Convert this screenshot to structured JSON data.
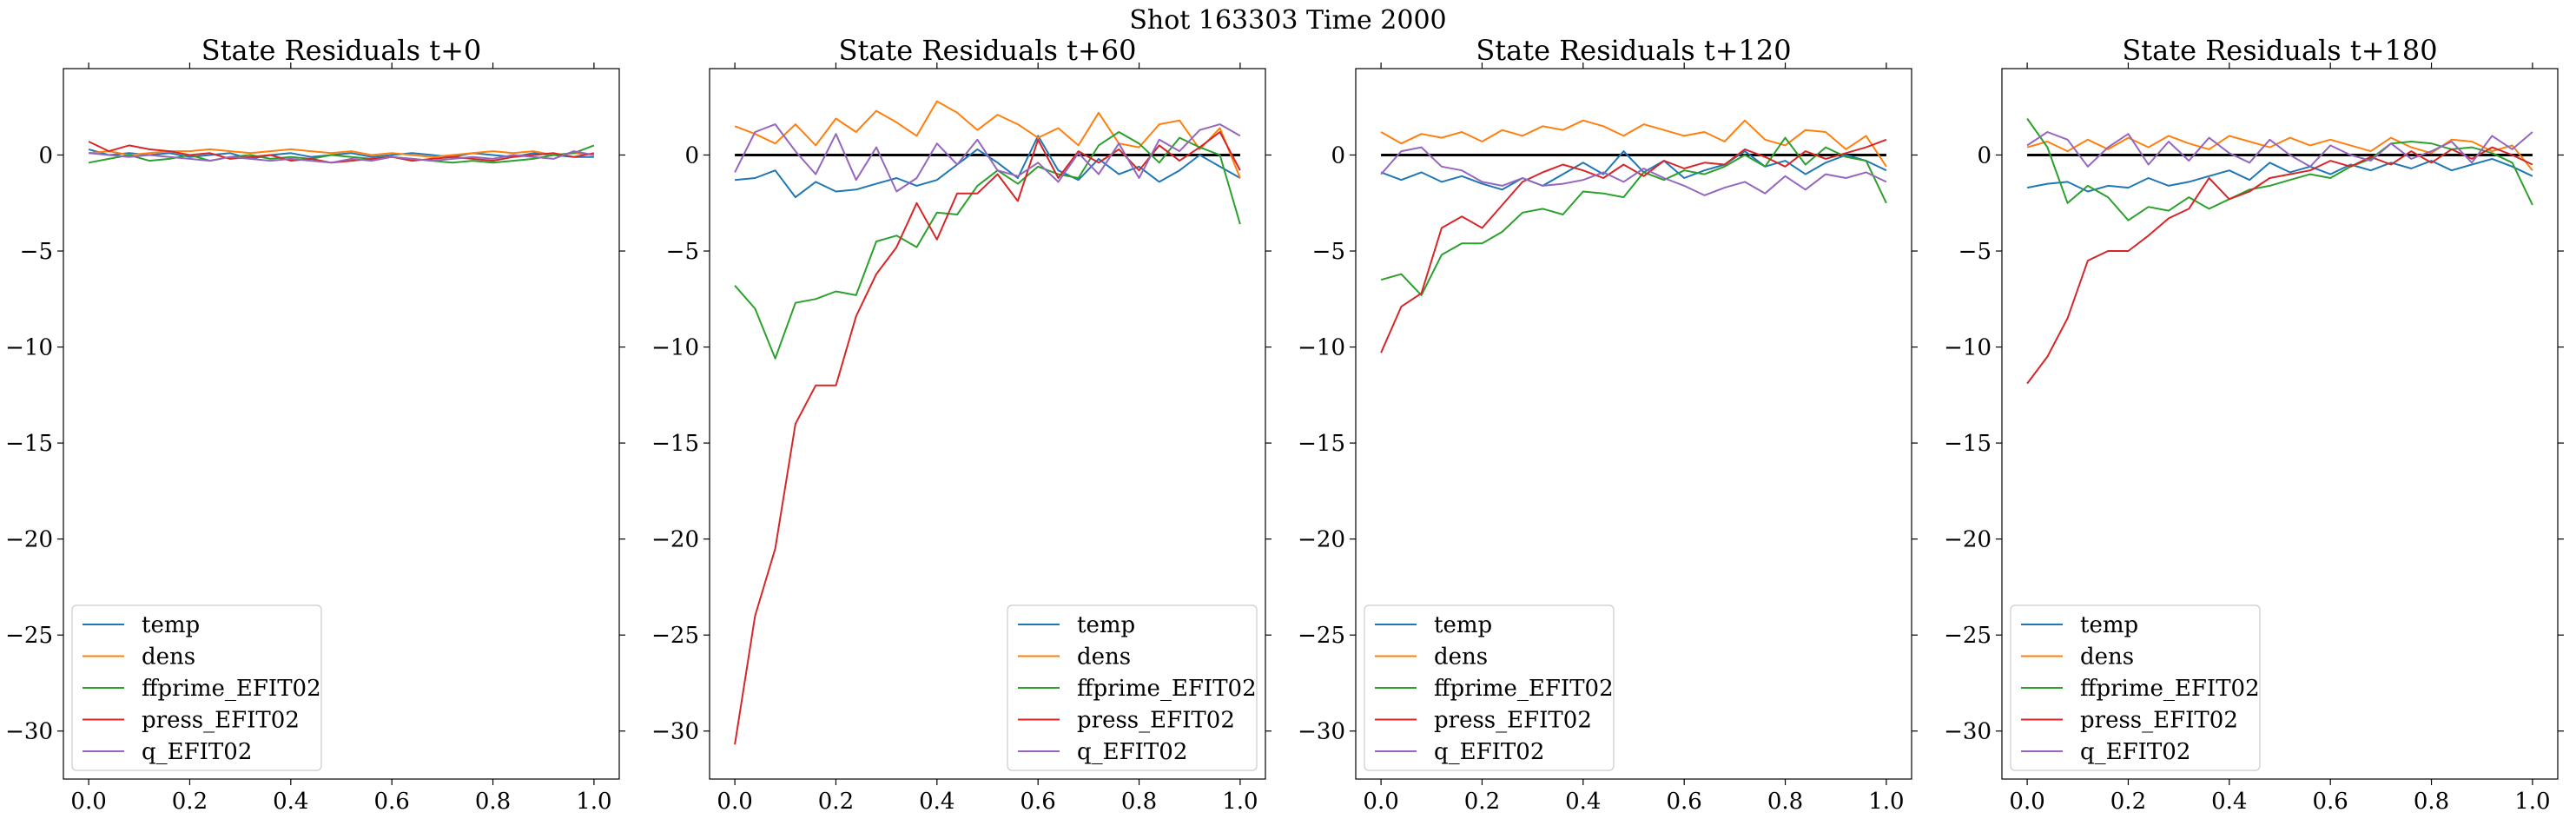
{
  "suptitle": "Shot 163303   Time 2000",
  "colors": {
    "temp": "#1f77b4",
    "dens": "#ff7f0e",
    "ffprime_EFIT02": "#2ca02c",
    "press_EFIT02": "#d62728",
    "q_EFIT02": "#9467bd",
    "zero_line": "#000000"
  },
  "chart_data": [
    {
      "type": "line",
      "title": "State Residuals t+0",
      "xlim": [
        -0.05,
        1.05
      ],
      "ylim": [
        -32.5,
        4.5
      ],
      "xticks": [
        "0.0",
        "0.2",
        "0.4",
        "0.6",
        "0.8",
        "1.0"
      ],
      "yticks": [
        "0",
        "−5",
        "−10",
        "−15",
        "−20",
        "−25",
        "−30"
      ],
      "zero_line": false,
      "legend": "lower-left",
      "x": [
        0.0,
        0.04,
        0.08,
        0.12,
        0.16,
        0.2,
        0.24,
        0.28,
        0.32,
        0.36,
        0.4,
        0.44,
        0.48,
        0.52,
        0.56,
        0.6,
        0.64,
        0.68,
        0.72,
        0.76,
        0.8,
        0.84,
        0.88,
        0.92,
        0.96,
        1.0
      ],
      "series": [
        {
          "name": "temp",
          "values": [
            0.3,
            0.0,
            0.1,
            0.0,
            0.1,
            -0.1,
            0.0,
            0.1,
            -0.2,
            0.0,
            0.1,
            -0.1,
            0.0,
            0.1,
            -0.1,
            0.0,
            0.1,
            0.0,
            -0.1,
            0.1,
            0.0,
            -0.1,
            0.1,
            0.0,
            -0.1,
            -0.1
          ]
        },
        {
          "name": "dens",
          "values": [
            0.1,
            0.2,
            0.0,
            0.1,
            0.2,
            0.2,
            0.3,
            0.2,
            0.1,
            0.2,
            0.3,
            0.2,
            0.1,
            0.2,
            0.0,
            0.1,
            0.0,
            -0.1,
            0.0,
            0.1,
            0.2,
            0.1,
            0.2,
            0.0,
            0.1,
            0.0
          ]
        },
        {
          "name": "ffprime_EFIT02",
          "values": [
            -0.4,
            -0.2,
            0.0,
            -0.3,
            -0.2,
            0.0,
            -0.3,
            -0.1,
            0.0,
            -0.2,
            -0.1,
            -0.2,
            0.0,
            -0.1,
            -0.2,
            -0.1,
            -0.2,
            -0.3,
            -0.4,
            -0.3,
            -0.4,
            -0.3,
            -0.2,
            0.0,
            0.1,
            0.5
          ]
        },
        {
          "name": "press_EFIT02",
          "values": [
            0.7,
            0.2,
            0.5,
            0.3,
            0.2,
            0.0,
            0.1,
            -0.2,
            -0.1,
            0.0,
            -0.3,
            -0.2,
            -0.4,
            -0.3,
            -0.2,
            -0.1,
            -0.3,
            -0.2,
            -0.1,
            -0.2,
            -0.3,
            -0.1,
            0.0,
            0.1,
            -0.1,
            0.1
          ]
        },
        {
          "name": "q_EFIT02",
          "values": [
            0.1,
            0.0,
            -0.1,
            0.0,
            -0.1,
            -0.2,
            -0.3,
            -0.1,
            -0.2,
            -0.3,
            -0.2,
            -0.3,
            -0.4,
            -0.2,
            -0.3,
            -0.1,
            -0.2,
            -0.3,
            -0.2,
            -0.1,
            -0.2,
            0.0,
            -0.1,
            -0.2,
            0.2,
            0.0
          ]
        }
      ]
    },
    {
      "type": "line",
      "title": "State Residuals t+60",
      "xlim": [
        -0.05,
        1.05
      ],
      "ylim": [
        -32.5,
        4.5
      ],
      "xticks": [
        "0.0",
        "0.2",
        "0.4",
        "0.6",
        "0.8",
        "1.0"
      ],
      "yticks": [
        "0",
        "−5",
        "−10",
        "−15",
        "−20",
        "−25",
        "−30"
      ],
      "zero_line": true,
      "legend": "lower-right",
      "x": [
        0.0,
        0.04,
        0.08,
        0.12,
        0.16,
        0.2,
        0.24,
        0.28,
        0.32,
        0.36,
        0.4,
        0.44,
        0.48,
        0.52,
        0.56,
        0.6,
        0.64,
        0.68,
        0.72,
        0.76,
        0.8,
        0.84,
        0.88,
        0.92,
        0.96,
        1.0
      ],
      "series": [
        {
          "name": "temp",
          "values": [
            -1.3,
            -1.2,
            -0.8,
            -2.2,
            -1.4,
            -1.9,
            -1.8,
            -1.5,
            -1.2,
            -1.6,
            -1.3,
            -0.5,
            0.3,
            -0.4,
            -1.2,
            1.0,
            -0.8,
            -1.3,
            -0.2,
            -1.0,
            -0.6,
            -1.4,
            -0.8,
            0.0,
            -0.6,
            -1.2
          ]
        },
        {
          "name": "dens",
          "values": [
            1.5,
            1.1,
            0.6,
            1.6,
            0.5,
            1.9,
            1.2,
            2.3,
            1.7,
            1.0,
            2.8,
            2.2,
            1.3,
            2.1,
            1.6,
            0.9,
            1.4,
            0.5,
            2.2,
            0.6,
            0.4,
            1.6,
            1.8,
            0.3,
            1.4,
            -1.2
          ]
        },
        {
          "name": "ffprime_EFIT02",
          "values": [
            -6.8,
            -8.0,
            -10.6,
            -7.7,
            -7.5,
            -7.1,
            -7.3,
            -4.5,
            -4.2,
            -4.8,
            -3.0,
            -3.1,
            -1.6,
            -0.8,
            -1.5,
            -0.6,
            -1.0,
            -1.2,
            0.5,
            1.2,
            0.6,
            -0.4,
            0.9,
            0.4,
            0.0,
            -3.6
          ]
        },
        {
          "name": "press_EFIT02",
          "values": [
            -30.7,
            -24.0,
            -20.5,
            -14.0,
            -12.0,
            -12.0,
            -8.4,
            -6.2,
            -4.8,
            -2.5,
            -4.4,
            -2.0,
            -2.0,
            -1.0,
            -2.4,
            0.8,
            -1.2,
            0.2,
            -0.4,
            0.3,
            -0.8,
            0.5,
            -0.3,
            0.4,
            1.2,
            -0.8
          ]
        },
        {
          "name": "q_EFIT02",
          "values": [
            -0.9,
            1.2,
            1.6,
            0.2,
            -1.0,
            1.1,
            -1.3,
            0.4,
            -1.9,
            -1.2,
            0.6,
            -0.5,
            0.8,
            -0.8,
            -1.1,
            -0.4,
            -1.4,
            0.1,
            -1.0,
            0.6,
            -1.2,
            0.8,
            0.2,
            1.3,
            1.6,
            1.0
          ]
        }
      ]
    },
    {
      "type": "line",
      "title": "State Residuals t+120",
      "xlim": [
        -0.05,
        1.05
      ],
      "ylim": [
        -32.5,
        4.5
      ],
      "xticks": [
        "0.0",
        "0.2",
        "0.4",
        "0.6",
        "0.8",
        "1.0"
      ],
      "yticks": [
        "0",
        "−5",
        "−10",
        "−15",
        "−20",
        "−25",
        "−30"
      ],
      "zero_line": true,
      "legend": "lower-left",
      "x": [
        0.0,
        0.04,
        0.08,
        0.12,
        0.16,
        0.2,
        0.24,
        0.28,
        0.32,
        0.36,
        0.4,
        0.44,
        0.48,
        0.52,
        0.56,
        0.6,
        0.64,
        0.68,
        0.72,
        0.76,
        0.8,
        0.84,
        0.88,
        0.92,
        0.96,
        1.0
      ],
      "series": [
        {
          "name": "temp",
          "values": [
            -0.9,
            -1.3,
            -0.9,
            -1.4,
            -1.1,
            -1.5,
            -1.8,
            -1.2,
            -1.6,
            -1.0,
            -0.4,
            -1.0,
            0.2,
            -0.9,
            -0.3,
            -1.2,
            -0.8,
            -0.5,
            0.2,
            -0.6,
            -0.3,
            -1.0,
            -0.4,
            0.0,
            -0.3,
            -0.8
          ]
        },
        {
          "name": "dens",
          "values": [
            1.2,
            0.6,
            1.1,
            0.9,
            1.2,
            0.7,
            1.3,
            1.0,
            1.5,
            1.3,
            1.8,
            1.5,
            1.0,
            1.6,
            1.3,
            1.0,
            1.2,
            0.7,
            1.8,
            0.8,
            0.5,
            1.3,
            1.2,
            0.3,
            1.0,
            -0.6
          ]
        },
        {
          "name": "ffprime_EFIT02",
          "values": [
            -6.5,
            -6.2,
            -7.3,
            -5.2,
            -4.6,
            -4.6,
            -4.0,
            -3.0,
            -2.8,
            -3.1,
            -1.9,
            -2.0,
            -2.2,
            -0.9,
            -1.3,
            -0.8,
            -1.0,
            -0.6,
            0.0,
            -0.6,
            0.9,
            -0.5,
            0.4,
            -0.1,
            -0.3,
            -2.5
          ]
        },
        {
          "name": "press_EFIT02",
          "values": [
            -10.3,
            -7.9,
            -7.2,
            -3.8,
            -3.2,
            -3.8,
            -2.6,
            -1.4,
            -0.9,
            -0.5,
            -0.8,
            -1.2,
            -0.5,
            -1.1,
            -0.3,
            -0.7,
            -0.4,
            -0.5,
            0.3,
            -0.1,
            -0.6,
            0.2,
            -0.2,
            0.1,
            0.4,
            0.8
          ]
        },
        {
          "name": "q_EFIT02",
          "values": [
            -1.0,
            0.2,
            0.4,
            -0.6,
            -0.8,
            -1.4,
            -1.6,
            -1.2,
            -1.6,
            -1.5,
            -1.3,
            -0.9,
            -1.4,
            -0.7,
            -1.2,
            -1.6,
            -2.1,
            -1.7,
            -1.4,
            -2.0,
            -1.1,
            -1.8,
            -1.0,
            -1.2,
            -0.9,
            -1.4
          ]
        }
      ]
    },
    {
      "type": "line",
      "title": "State Residuals t+180",
      "xlim": [
        -0.05,
        1.05
      ],
      "ylim": [
        -32.5,
        4.5
      ],
      "xticks": [
        "0.0",
        "0.2",
        "0.4",
        "0.6",
        "0.8",
        "1.0"
      ],
      "yticks": [
        "0",
        "−5",
        "−10",
        "−15",
        "−20",
        "−25",
        "−30"
      ],
      "zero_line": true,
      "legend": "lower-left",
      "x": [
        0.0,
        0.04,
        0.08,
        0.12,
        0.16,
        0.2,
        0.24,
        0.28,
        0.32,
        0.36,
        0.4,
        0.44,
        0.48,
        0.52,
        0.56,
        0.6,
        0.64,
        0.68,
        0.72,
        0.76,
        0.8,
        0.84,
        0.88,
        0.92,
        0.96,
        1.0
      ],
      "series": [
        {
          "name": "temp",
          "values": [
            -1.7,
            -1.5,
            -1.4,
            -1.9,
            -1.6,
            -1.7,
            -1.2,
            -1.6,
            -1.4,
            -1.1,
            -0.8,
            -1.3,
            -0.4,
            -0.9,
            -0.6,
            -1.0,
            -0.5,
            -0.8,
            -0.4,
            -0.7,
            -0.3,
            -0.8,
            -0.5,
            -0.2,
            -0.6,
            -1.1
          ]
        },
        {
          "name": "dens",
          "values": [
            0.4,
            0.7,
            0.2,
            0.8,
            0.3,
            0.9,
            0.4,
            1.0,
            0.6,
            0.3,
            1.0,
            0.7,
            0.4,
            0.9,
            0.5,
            0.8,
            0.5,
            0.2,
            0.9,
            0.4,
            0.1,
            0.8,
            0.7,
            0.2,
            0.5,
            -0.8
          ]
        },
        {
          "name": "ffprime_EFIT02",
          "values": [
            1.9,
            0.4,
            -2.5,
            -1.6,
            -2.2,
            -3.4,
            -2.7,
            -2.9,
            -2.2,
            -2.8,
            -2.3,
            -1.8,
            -1.6,
            -1.3,
            -1.0,
            -1.2,
            -0.6,
            -0.2,
            0.6,
            0.7,
            0.6,
            0.3,
            0.4,
            0.1,
            -0.4,
            -2.6
          ]
        },
        {
          "name": "press_EFIT02",
          "values": [
            -11.9,
            -10.5,
            -8.5,
            -5.5,
            -5.0,
            -5.0,
            -4.2,
            -3.3,
            -2.8,
            -1.2,
            -2.3,
            -1.9,
            -1.2,
            -1.0,
            -0.8,
            -0.3,
            -0.6,
            -0.1,
            -0.5,
            0.2,
            -0.4,
            0.3,
            -0.2,
            0.4,
            0.0,
            -0.5
          ]
        },
        {
          "name": "q_EFIT02",
          "values": [
            0.5,
            1.2,
            0.8,
            -0.6,
            0.4,
            1.1,
            -0.5,
            0.7,
            -0.3,
            0.9,
            0.1,
            -0.4,
            0.8,
            0.0,
            -0.6,
            0.5,
            0.0,
            -0.3,
            0.6,
            -0.2,
            0.2,
            0.7,
            -0.4,
            1.0,
            0.3,
            1.2
          ]
        }
      ]
    }
  ]
}
